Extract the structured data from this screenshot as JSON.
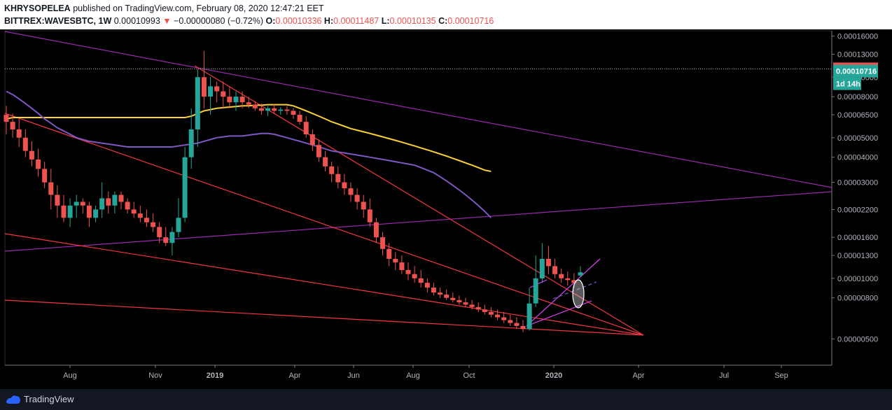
{
  "header": {
    "author": "KHRYSOPELEA",
    "published_text": "published on TradingView.com, February 08, 2020 12:47:21 EET",
    "symbol": "BITTREX:WAVESBTC, 1W",
    "last": "0.00010993",
    "change": "−0.00000080 (−0.72%)",
    "open_label": "O:",
    "open": "0.00010336",
    "high_label": "H:",
    "high": "0.00011487",
    "low_label": "L:",
    "low": "0.00010135",
    "close_label": "C:",
    "close": "0.00010716"
  },
  "footer": {
    "brand": "TradingView"
  },
  "colors": {
    "up": "#26a69a",
    "down": "#ef5350",
    "ma_yellow": "#fbd038",
    "ma_purple": "#7e57c2",
    "trend_red": "#f23645",
    "trend_purple": "#9c27b0"
  },
  "chart_data": {
    "type": "candlestick",
    "symbol": "BITTREX:WAVESBTC",
    "timeframe": "1W",
    "y_scale": "log",
    "ylim": [
      3.7e-06,
      0.00017
    ],
    "y_ticks": [
      "0.00016000",
      "0.00013000",
      "0.00010000",
      "0.00008000",
      "0.00006500",
      "0.00005000",
      "0.00004000",
      "0.00003000",
      "0.00002200",
      "0.00001600",
      "0.00001300",
      "0.00001000",
      "0.00000800",
      "0.00000500"
    ],
    "x_ticks": [
      "Aug",
      "Nov",
      "2019",
      "Apr",
      "Jun",
      "Aug",
      "Oct",
      "2020",
      "Apr",
      "Jul",
      "Sep"
    ],
    "price_labels": [
      {
        "text": "0.00010993",
        "kind": "last"
      },
      {
        "text": "0.00010716",
        "kind": "close"
      },
      {
        "text": "1d 14h",
        "kind": "countdown"
      }
    ],
    "candles": [
      [
        6.5,
        7.2,
        5.2,
        6.0
      ],
      [
        6.0,
        6.6,
        5.0,
        5.5
      ],
      [
        5.5,
        6.2,
        4.5,
        5.0
      ],
      [
        5.0,
        5.5,
        4.0,
        4.3
      ],
      [
        4.3,
        4.8,
        3.6,
        3.9
      ],
      [
        3.9,
        4.4,
        3.2,
        3.5
      ],
      [
        3.5,
        3.8,
        2.8,
        3.0
      ],
      [
        3.0,
        3.5,
        2.2,
        2.6
      ],
      [
        2.6,
        2.9,
        2.0,
        2.3
      ],
      [
        2.3,
        2.6,
        1.9,
        2.0
      ],
      [
        2.0,
        2.5,
        1.8,
        2.3
      ],
      [
        2.3,
        2.6,
        2.0,
        2.4
      ],
      [
        2.4,
        2.5,
        2.1,
        2.3
      ],
      [
        2.3,
        2.4,
        1.8,
        2.0
      ],
      [
        2.0,
        2.3,
        1.9,
        2.2
      ],
      [
        2.2,
        3.0,
        2.0,
        2.5
      ],
      [
        2.5,
        2.7,
        2.1,
        2.3
      ],
      [
        2.3,
        2.7,
        2.1,
        2.6
      ],
      [
        2.6,
        2.7,
        2.2,
        2.4
      ],
      [
        2.4,
        2.5,
        2.1,
        2.2
      ],
      [
        2.2,
        2.4,
        2.0,
        2.1
      ],
      [
        2.1,
        2.3,
        1.9,
        2.0
      ],
      [
        2.0,
        2.2,
        1.8,
        1.9
      ],
      [
        1.9,
        2.1,
        1.7,
        1.8
      ],
      [
        1.8,
        1.9,
        1.5,
        1.6
      ],
      [
        1.6,
        1.8,
        1.45,
        1.5
      ],
      [
        1.5,
        1.8,
        1.3,
        1.7
      ],
      [
        1.7,
        2.5,
        1.6,
        2.0
      ],
      [
        2.0,
        4.5,
        1.9,
        4.0
      ],
      [
        4.0,
        7.0,
        3.5,
        5.5
      ],
      [
        5.5,
        11.0,
        4.5,
        10.0
      ],
      [
        10.0,
        13.5,
        7.0,
        8.0
      ],
      [
        8.0,
        10.0,
        6.5,
        9.0
      ],
      [
        9.0,
        9.5,
        7.5,
        8.5
      ],
      [
        8.5,
        9.5,
        7.0,
        8.0
      ],
      [
        8.0,
        9.0,
        7.0,
        7.5
      ],
      [
        7.5,
        8.5,
        6.8,
        8.0
      ],
      [
        8.0,
        8.5,
        7.0,
        7.5
      ],
      [
        7.5,
        8.0,
        7.0,
        7.3
      ],
      [
        7.3,
        7.6,
        6.8,
        7.0
      ],
      [
        7.0,
        7.4,
        6.5,
        6.8
      ],
      [
        6.8,
        7.2,
        6.4,
        7.0
      ],
      [
        7.0,
        7.3,
        6.6,
        6.8
      ],
      [
        6.8,
        7.1,
        6.5,
        6.9
      ],
      [
        6.9,
        7.2,
        6.5,
        6.8
      ],
      [
        6.8,
        7.0,
        6.2,
        6.5
      ],
      [
        6.5,
        6.8,
        5.8,
        6.0
      ],
      [
        6.0,
        6.4,
        5.0,
        5.2
      ],
      [
        5.2,
        5.5,
        4.3,
        4.6
      ],
      [
        4.6,
        4.9,
        3.8,
        4.0
      ],
      [
        4.0,
        4.3,
        3.4,
        3.6
      ],
      [
        3.6,
        3.8,
        3.0,
        3.3
      ],
      [
        3.3,
        3.6,
        2.8,
        3.0
      ],
      [
        3.0,
        3.3,
        2.6,
        2.8
      ],
      [
        2.8,
        3.0,
        2.4,
        2.6
      ],
      [
        2.6,
        2.8,
        2.2,
        2.4
      ],
      [
        2.4,
        2.6,
        2.0,
        2.2
      ],
      [
        2.2,
        2.5,
        1.8,
        1.9
      ],
      [
        1.9,
        2.0,
        1.5,
        1.6
      ],
      [
        1.6,
        1.7,
        1.3,
        1.4
      ],
      [
        1.4,
        1.5,
        1.15,
        1.25
      ],
      [
        1.25,
        1.35,
        1.1,
        1.2
      ],
      [
        1.2,
        1.3,
        1.05,
        1.1
      ],
      [
        1.1,
        1.2,
        0.98,
        1.05
      ],
      [
        1.05,
        1.15,
        0.95,
        1.0
      ],
      [
        1.0,
        1.1,
        0.9,
        0.95
      ],
      [
        0.95,
        1.0,
        0.85,
        0.9
      ],
      [
        0.9,
        0.95,
        0.82,
        0.85
      ],
      [
        0.85,
        0.9,
        0.8,
        0.83
      ],
      [
        0.83,
        0.88,
        0.78,
        0.8
      ],
      [
        0.8,
        0.85,
        0.76,
        0.78
      ],
      [
        0.78,
        0.82,
        0.74,
        0.76
      ],
      [
        0.76,
        0.8,
        0.72,
        0.74
      ],
      [
        0.74,
        0.78,
        0.7,
        0.72
      ],
      [
        0.72,
        0.76,
        0.68,
        0.7
      ],
      [
        0.7,
        0.74,
        0.66,
        0.68
      ],
      [
        0.68,
        0.72,
        0.64,
        0.66
      ],
      [
        0.66,
        0.7,
        0.62,
        0.64
      ],
      [
        0.64,
        0.68,
        0.6,
        0.62
      ],
      [
        0.62,
        0.66,
        0.58,
        0.6
      ],
      [
        0.6,
        0.64,
        0.56,
        0.58
      ],
      [
        0.58,
        0.62,
        0.54,
        0.56
      ],
      [
        0.56,
        0.9,
        0.55,
        0.75
      ],
      [
        0.75,
        1.3,
        0.72,
        1.0
      ],
      [
        1.0,
        1.5,
        0.95,
        1.25
      ],
      [
        1.25,
        1.45,
        1.05,
        1.15
      ],
      [
        1.15,
        1.25,
        1.0,
        1.05
      ],
      [
        1.05,
        1.12,
        0.95,
        1.0
      ],
      [
        1.0,
        1.08,
        0.92,
        0.98
      ],
      [
        0.98,
        1.06,
        0.9,
        0.95
      ],
      [
        1.0336,
        1.1487,
        1.0135,
        1.0716
      ]
    ],
    "series": [
      {
        "name": "MA yellow",
        "values": [
          6.2,
          6.3,
          6.3,
          6.3,
          6.3,
          6.3,
          6.3,
          6.3,
          6.3,
          6.3,
          6.3,
          6.3,
          6.3,
          6.3,
          6.3,
          6.3,
          6.3,
          6.3,
          6.3,
          6.3,
          6.3,
          6.3,
          6.3,
          6.3,
          6.3,
          6.3,
          6.3,
          6.3,
          6.3,
          6.4,
          6.6,
          6.8,
          6.9,
          7.0,
          7.05,
          7.1,
          7.15,
          7.2,
          7.2,
          7.25,
          7.25,
          7.3,
          7.3,
          7.3,
          7.3,
          7.2,
          7.0,
          6.8,
          6.6,
          6.4,
          6.2,
          6.0,
          5.85,
          5.7,
          5.55,
          5.45,
          5.35,
          5.25,
          5.15,
          5.05,
          4.95,
          4.85,
          4.75,
          4.65,
          4.55,
          4.45,
          4.35,
          4.25,
          4.15,
          4.05,
          3.95,
          3.85,
          3.75,
          3.65,
          3.55,
          3.45,
          3.4
        ]
      },
      {
        "name": "MA purple",
        "values": [
          8.5,
          8.2,
          7.8,
          7.4,
          7.0,
          6.6,
          6.2,
          5.9,
          5.6,
          5.4,
          5.2,
          5.0,
          4.9,
          4.8,
          4.75,
          4.7,
          4.65,
          4.6,
          4.55,
          4.5,
          4.5,
          4.5,
          4.5,
          4.5,
          4.5,
          4.5,
          4.5,
          4.55,
          4.6,
          4.65,
          4.7,
          4.8,
          4.9,
          5.0,
          5.05,
          5.1,
          5.1,
          5.1,
          5.15,
          5.2,
          5.25,
          5.25,
          5.2,
          5.1,
          5.0,
          4.9,
          4.8,
          4.7,
          4.6,
          4.5,
          4.4,
          4.3,
          4.25,
          4.2,
          4.15,
          4.1,
          4.05,
          4.0,
          3.95,
          3.9,
          3.85,
          3.8,
          3.75,
          3.7,
          3.65,
          3.55,
          3.45,
          3.35,
          3.2,
          3.05,
          2.9,
          2.75,
          2.6,
          2.45,
          2.3,
          2.15,
          2.0
        ]
      }
    ]
  }
}
